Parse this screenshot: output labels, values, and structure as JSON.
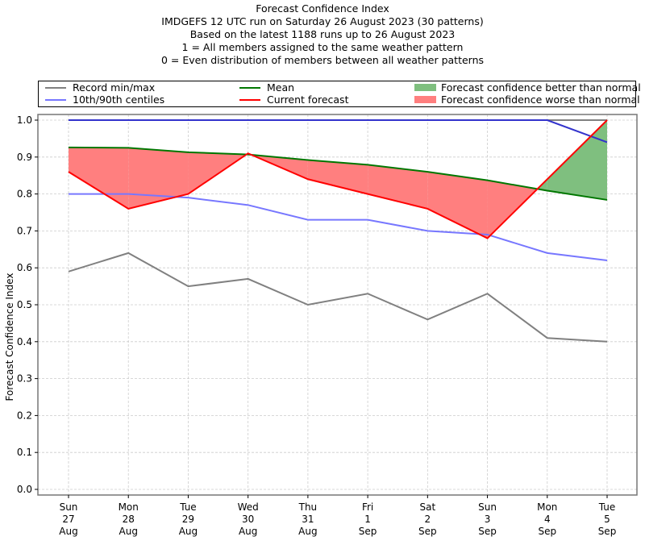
{
  "chart_data": {
    "type": "line",
    "title_lines": [
      "Forecast Confidence Index",
      "IMDGEFS 12 UTC run on Saturday 26 August 2023 (30 patterns)",
      "Based on the latest 1188 runs up to 26 August 2023",
      "1 = All members assigned to the same weather pattern",
      "0 = Even distribution of members between all weather patterns"
    ],
    "xlabel": "",
    "ylabel": "Forecast Confidence Index",
    "ylim": [
      0.0,
      1.0
    ],
    "yticks": [
      "0.0",
      "0.1",
      "0.2",
      "0.3",
      "0.4",
      "0.5",
      "0.6",
      "0.7",
      "0.8",
      "0.9",
      "1.0"
    ],
    "grid": true,
    "categories": [
      {
        "day": "Sun",
        "date": "27",
        "month": "Aug"
      },
      {
        "day": "Mon",
        "date": "28",
        "month": "Aug"
      },
      {
        "day": "Tue",
        "date": "29",
        "month": "Aug"
      },
      {
        "day": "Wed",
        "date": "30",
        "month": "Aug"
      },
      {
        "day": "Thu",
        "date": "31",
        "month": "Aug"
      },
      {
        "day": "Fri",
        "date": "1",
        "month": "Sep"
      },
      {
        "day": "Sat",
        "date": "2",
        "month": "Sep"
      },
      {
        "day": "Sun",
        "date": "3",
        "month": "Sep"
      },
      {
        "day": "Mon",
        "date": "4",
        "month": "Sep"
      },
      {
        "day": "Tue",
        "date": "5",
        "month": "Sep"
      }
    ],
    "series": [
      {
        "name": "Record min",
        "legend": "Record min/max",
        "color": "#808080",
        "values": [
          0.59,
          0.64,
          0.55,
          0.57,
          0.5,
          0.53,
          0.46,
          0.53,
          0.41,
          0.4
        ]
      },
      {
        "name": "Record max",
        "legend": "Record min/max",
        "color": "#808080",
        "values": [
          1.0,
          1.0,
          1.0,
          1.0,
          1.0,
          1.0,
          1.0,
          1.0,
          1.0,
          1.0
        ]
      },
      {
        "name": "10th centile",
        "legend": "10th/90th centiles",
        "color": "#7777ff",
        "values": [
          0.8,
          0.8,
          0.79,
          0.77,
          0.73,
          0.73,
          0.7,
          0.69,
          0.64,
          0.62
        ]
      },
      {
        "name": "90th centile",
        "legend": "10th/90th centiles",
        "color": "#3333cc",
        "values": [
          1.0,
          1.0,
          1.0,
          1.0,
          1.0,
          1.0,
          1.0,
          1.0,
          1.0,
          0.94
        ]
      },
      {
        "name": "Mean",
        "legend": "Mean",
        "color": "#007700",
        "values": [
          0.926,
          0.925,
          0.913,
          0.907,
          0.892,
          0.879,
          0.86,
          0.837,
          0.809,
          0.784
        ]
      },
      {
        "name": "Current forecast",
        "legend": "Current forecast",
        "color": "#ff0000",
        "values": [
          0.86,
          0.76,
          0.8,
          0.91,
          0.84,
          0.8,
          0.76,
          0.68,
          0.84,
          1.0
        ]
      }
    ],
    "fills": [
      {
        "name": "Forecast confidence better than normal",
        "color": "#7fbf7f",
        "condition": "forecast > mean"
      },
      {
        "name": "Forecast confidence worse than normal",
        "color": "#ff7f7f",
        "condition": "forecast < mean"
      }
    ],
    "legend": {
      "placement": "top",
      "entries": [
        {
          "label": "Record min/max",
          "kind": "line",
          "color": "#808080"
        },
        {
          "label": "10th/90th centiles",
          "kind": "line",
          "color": "#7777ff"
        },
        {
          "label": "Mean",
          "kind": "line",
          "color": "#007700"
        },
        {
          "label": "Current forecast",
          "kind": "line",
          "color": "#ff0000"
        },
        {
          "label": "Forecast confidence better than normal",
          "kind": "patch",
          "color": "#7fbf7f"
        },
        {
          "label": "Forecast confidence worse than normal",
          "kind": "patch",
          "color": "#ff7f7f"
        }
      ]
    }
  }
}
